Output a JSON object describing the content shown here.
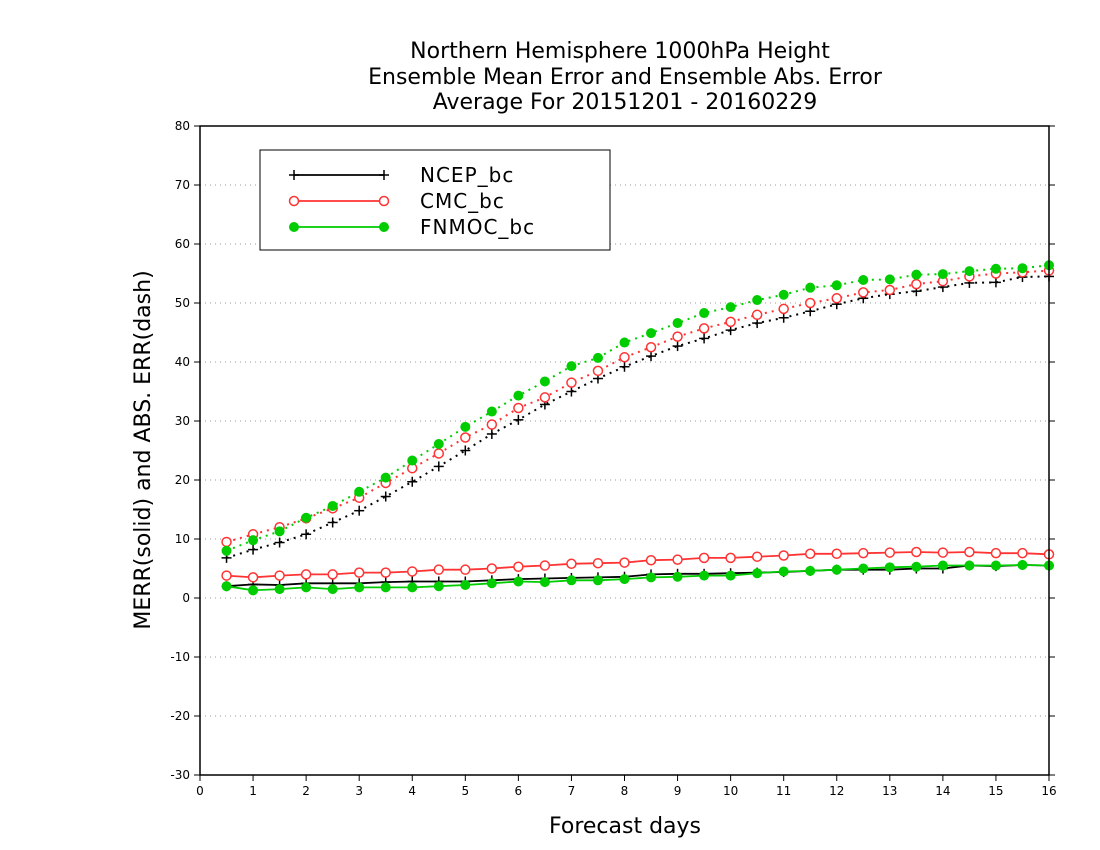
{
  "chart_data": {
    "type": "line",
    "title": [
      "Northern Hemisphere 1000hPa Height",
      "Ensemble Mean Error and Ensemble Abs. Error",
      "Average For 20151201 - 20160229"
    ],
    "xlabel": "Forecast days",
    "ylabel": "MERR(solid) and ABS. ERR(dash)",
    "xlim": [
      0,
      16
    ],
    "ylim": [
      -30,
      80
    ],
    "xticks": [
      0,
      1,
      2,
      3,
      4,
      5,
      6,
      7,
      8,
      9,
      10,
      11,
      12,
      13,
      14,
      15,
      16
    ],
    "yticks": [
      -30,
      -20,
      -10,
      0,
      10,
      20,
      30,
      40,
      50,
      60,
      70,
      80
    ],
    "grid": "horizontal dotted",
    "legend_position": "top-left",
    "x": [
      0.5,
      1,
      1.5,
      2,
      2.5,
      3,
      3.5,
      4,
      4.5,
      5,
      5.5,
      6,
      6.5,
      7,
      7.5,
      8,
      8.5,
      9,
      9.5,
      10,
      10.5,
      11,
      11.5,
      12,
      12.5,
      13,
      13.5,
      14,
      14.5,
      15,
      15.5,
      16
    ],
    "series": [
      {
        "name": "NCEP_bc",
        "color": "#000000",
        "marker": "plus",
        "merr": [
          2.0,
          2.3,
          2.2,
          2.5,
          2.5,
          2.5,
          2.7,
          2.8,
          2.8,
          2.8,
          3.0,
          3.2,
          3.3,
          3.4,
          3.5,
          3.6,
          4.0,
          4.1,
          4.1,
          4.2,
          4.3,
          4.4,
          4.6,
          4.8,
          4.8,
          4.8,
          5.0,
          5.0,
          5.5,
          5.4,
          5.6,
          5.5
        ],
        "abs_err": [
          6.8,
          8.2,
          9.4,
          10.8,
          12.8,
          14.8,
          17.2,
          19.7,
          22.3,
          25.0,
          27.8,
          30.2,
          32.8,
          35.0,
          37.2,
          39.2,
          41.0,
          42.7,
          44.0,
          45.4,
          46.6,
          47.5,
          48.6,
          49.8,
          50.8,
          51.5,
          52.0,
          52.7,
          53.4,
          53.5,
          54.4,
          54.5
        ]
      },
      {
        "name": "CMC_bc",
        "color": "#ff3333",
        "marker": "open-circle",
        "merr": [
          3.8,
          3.5,
          3.8,
          4.0,
          4.0,
          4.3,
          4.3,
          4.5,
          4.8,
          4.8,
          5.0,
          5.3,
          5.5,
          5.8,
          5.9,
          6.0,
          6.4,
          6.5,
          6.8,
          6.8,
          7.0,
          7.2,
          7.5,
          7.5,
          7.6,
          7.7,
          7.8,
          7.7,
          7.8,
          7.6,
          7.6,
          7.4
        ],
        "abs_err": [
          9.5,
          10.8,
          12.0,
          13.5,
          15.2,
          17.0,
          19.5,
          22.0,
          24.5,
          27.2,
          29.4,
          32.2,
          34.0,
          36.5,
          38.5,
          40.8,
          42.5,
          44.3,
          45.7,
          46.8,
          48.0,
          49.0,
          50.0,
          50.8,
          51.8,
          52.2,
          53.2,
          53.7,
          54.5,
          55.0,
          55.2,
          55.5
        ]
      },
      {
        "name": "FNMOC_bc",
        "color": "#00cc00",
        "marker": "filled-circle",
        "merr": [
          2.0,
          1.3,
          1.5,
          1.8,
          1.5,
          1.8,
          1.8,
          1.8,
          2.0,
          2.2,
          2.5,
          2.8,
          2.7,
          3.0,
          3.0,
          3.2,
          3.5,
          3.6,
          3.8,
          3.8,
          4.2,
          4.5,
          4.6,
          4.8,
          5.0,
          5.2,
          5.3,
          5.5,
          5.5,
          5.5,
          5.6,
          5.5
        ],
        "abs_err": [
          8.0,
          9.8,
          11.3,
          13.6,
          15.6,
          18.0,
          20.4,
          23.3,
          26.1,
          29.0,
          31.6,
          34.3,
          36.7,
          39.3,
          40.7,
          43.3,
          44.9,
          46.6,
          48.3,
          49.3,
          50.5,
          51.4,
          52.6,
          53.0,
          53.9,
          54.0,
          54.8,
          54.9,
          55.4,
          55.8,
          55.9,
          56.4
        ]
      }
    ]
  }
}
